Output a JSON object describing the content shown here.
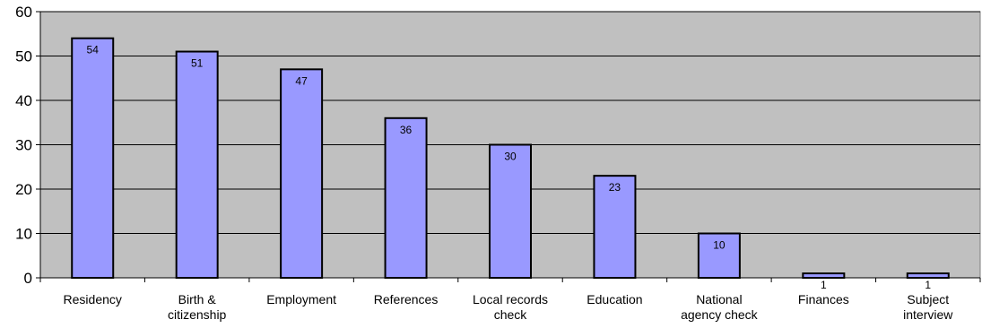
{
  "chart_data": {
    "type": "bar",
    "title": "",
    "xlabel": "",
    "ylabel": "",
    "categories": [
      "Residency",
      "Birth & citizenship",
      "Employment",
      "References",
      "Local records check",
      "Education",
      "National agency check",
      "Finances",
      "Subject interview"
    ],
    "values": [
      54,
      51,
      47,
      36,
      30,
      23,
      10,
      1,
      1
    ],
    "data_labels": [
      "54",
      "51",
      "47",
      "36",
      "30",
      "23",
      "10",
      "1",
      "1"
    ],
    "ylim": [
      0,
      60
    ],
    "yticks": [
      "0",
      "10",
      "20",
      "30",
      "40",
      "50",
      "60"
    ],
    "grid": true,
    "legend": "none",
    "colors": {
      "bar_fill": "#9999ff",
      "bar_stroke": "#000000",
      "plot_background": "#c0c0c0",
      "gridline": "#000000"
    }
  }
}
